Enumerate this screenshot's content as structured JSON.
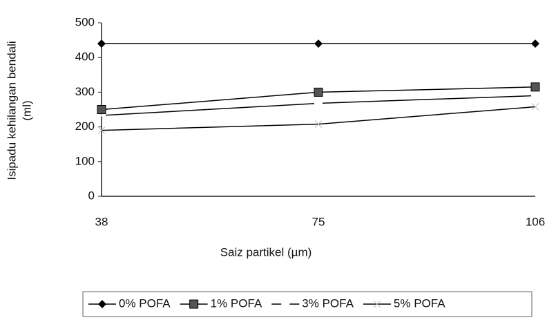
{
  "chart_data": {
    "type": "line",
    "y_label": [
      "Isipadu kehilangan bendali",
      "(ml)"
    ],
    "x_label": "Saiz partikel (µm)",
    "categories": [
      "38",
      "75",
      "106"
    ],
    "series": [
      {
        "name": "0% POFA",
        "color": "#000000",
        "marker": "diamond",
        "values": [
          440,
          440,
          440
        ]
      },
      {
        "name": "1% POFA",
        "color": "#000000",
        "marker": "square",
        "values": [
          250,
          300,
          315
        ]
      },
      {
        "name": "3% POFA",
        "color": "#000000",
        "marker": "dash",
        "values": [
          233,
          268,
          290
        ]
      },
      {
        "name": "5% POFA",
        "color": "#000000",
        "marker": "tick",
        "values": [
          190,
          208,
          258
        ]
      }
    ],
    "ylim": [
      0,
      500
    ],
    "yticks": [
      0,
      100,
      200,
      300,
      400,
      500
    ],
    "grid": false,
    "legend": "bottom"
  }
}
